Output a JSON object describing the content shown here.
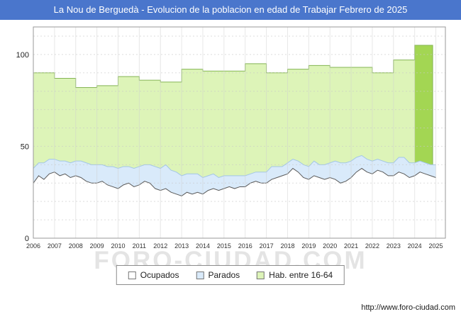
{
  "header": {
    "title": "La Nou de Berguedà - Evolucion de la poblacion en edad de Trabajar Febrero de 2025"
  },
  "watermark": {
    "text": "FORO-CIUDAD.COM"
  },
  "footer": {
    "url": "http://www.foro-ciudad.com"
  },
  "legend": {
    "items": [
      {
        "label": "Ocupados"
      },
      {
        "label": "Parados"
      },
      {
        "label": "Hab. entre 16-64"
      }
    ]
  },
  "chart_data": {
    "type": "area",
    "title": "La Nou de Berguedà - Evolucion de la poblacion en edad de Trabajar Febrero de 2025",
    "xlabel": "",
    "ylabel": "",
    "ylim": [
      0,
      115
    ],
    "yticks": [
      0,
      50,
      100
    ],
    "x_tick_labels": [
      "2006",
      "2007",
      "2008",
      "2009",
      "2010",
      "2011",
      "2012",
      "2013",
      "2014",
      "2015",
      "2016",
      "2017",
      "2018",
      "2019",
      "2020",
      "2021",
      "2022",
      "2023",
      "2024",
      "2025"
    ],
    "x_start": 2006,
    "x_step": 0.25,
    "grid": "dotted",
    "legend_position": "bottom",
    "series": [
      {
        "name": "Ocupados",
        "type": "area",
        "fill": "#ffffff",
        "stroke": "#5a5a5a",
        "values": [
          30,
          34,
          32,
          35,
          36,
          34,
          35,
          33,
          34,
          33,
          31,
          30,
          30,
          31,
          29,
          28,
          27,
          29,
          30,
          28,
          29,
          31,
          30,
          27,
          26,
          27,
          25,
          24,
          23,
          25,
          24,
          25,
          24,
          26,
          27,
          26,
          27,
          28,
          27,
          28,
          28,
          30,
          31,
          30,
          30,
          32,
          33,
          34,
          35,
          38,
          36,
          33,
          32,
          34,
          33,
          32,
          33,
          32,
          30,
          31,
          33,
          36,
          38,
          36,
          35,
          37,
          36,
          34,
          34,
          36,
          35,
          33,
          34,
          36,
          35,
          34,
          33
        ]
      },
      {
        "name": "Parados",
        "type": "area",
        "stacked_on": "Ocupados",
        "fill": "#d9eafa",
        "stroke": "#a3c6e6",
        "values": [
          8,
          7,
          9,
          8,
          7,
          8,
          7,
          8,
          8,
          9,
          10,
          10,
          10,
          9,
          10,
          11,
          11,
          10,
          9,
          10,
          10,
          9,
          10,
          12,
          12,
          13,
          12,
          12,
          11,
          10,
          11,
          10,
          9,
          8,
          8,
          7,
          7,
          6,
          7,
          6,
          6,
          5,
          5,
          6,
          6,
          7,
          6,
          5,
          6,
          5,
          6,
          7,
          7,
          8,
          7,
          8,
          8,
          10,
          11,
          10,
          9,
          8,
          7,
          7,
          7,
          6,
          6,
          7,
          7,
          8,
          9,
          8,
          7,
          6,
          6,
          6,
          7
        ]
      },
      {
        "name": "Hab. entre 16-64",
        "type": "step-area",
        "fill": "#ddf4b8",
        "stroke": "#85b554",
        "last_fill": "#a3d653",
        "end_x": 2024.85,
        "years": [
          2006,
          2007,
          2008,
          2009,
          2010,
          2011,
          2012,
          2013,
          2014,
          2015,
          2016,
          2017,
          2018,
          2019,
          2020,
          2021,
          2022,
          2023,
          2024
        ],
        "values": [
          90,
          87,
          82,
          83,
          88,
          86,
          85,
          92,
          91,
          91,
          95,
          90,
          92,
          94,
          93,
          93,
          90,
          97,
          105
        ]
      }
    ]
  }
}
